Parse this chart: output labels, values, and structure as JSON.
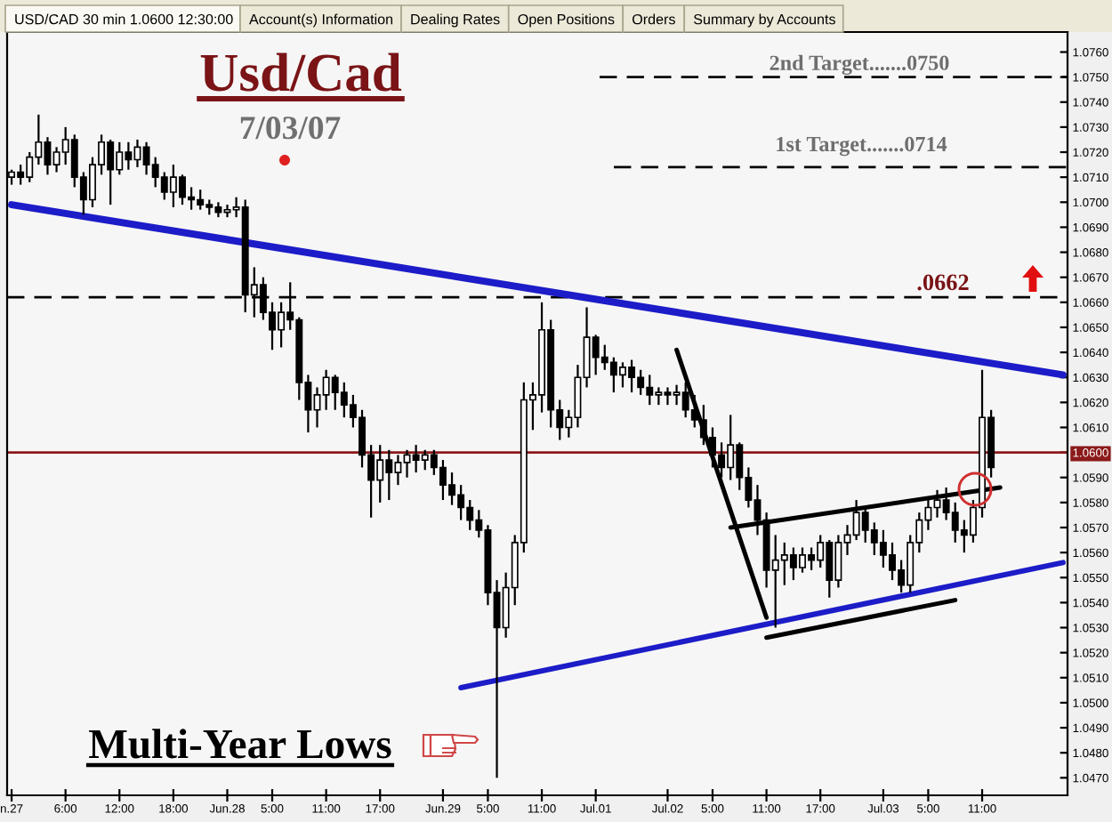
{
  "chart_data": {
    "type": "candlestick",
    "title": "Usd/Cad",
    "subtitle": "7/03/07",
    "color": "#000000",
    "categories": [
      "n.27",
      null,
      null,
      null,
      null,
      null,
      "6:00",
      null,
      null,
      null,
      null,
      null,
      "12:00",
      null,
      null,
      null,
      null,
      null,
      "18:00",
      null,
      null,
      null,
      null,
      null,
      "Jun.28",
      null,
      null,
      null,
      null,
      "5:00",
      null,
      null,
      null,
      null,
      null,
      "11:00",
      null,
      null,
      null,
      null,
      null,
      "17:00",
      null,
      null,
      null,
      null,
      null,
      null,
      "Jun.29",
      null,
      null,
      null,
      null,
      "5:00",
      null,
      null,
      null,
      null,
      null,
      "11:00",
      null,
      null,
      null,
      null,
      null,
      "Jul.01",
      null,
      null,
      null,
      null,
      null,
      null,
      null,
      "Jul.02",
      null,
      null,
      null,
      null,
      "5:00",
      null,
      null,
      null,
      null,
      null,
      "11:00",
      null,
      null,
      null,
      null,
      null,
      "17:00",
      null,
      null,
      null,
      null,
      null,
      null,
      "Jul.03",
      null,
      null,
      null,
      null,
      "5:00",
      null,
      null,
      null,
      null,
      null,
      "11:00",
      null,
      null,
      null,
      null,
      null,
      null,
      null,
      null,
      null
    ],
    "ohlc": [
      [
        1.071,
        1.0713,
        1.0707,
        1.0712
      ],
      [
        1.0712,
        1.0715,
        1.0707,
        1.071
      ],
      [
        1.071,
        1.072,
        1.0708,
        1.0718
      ],
      [
        1.0718,
        1.0735,
        1.0715,
        1.0724
      ],
      [
        1.0724,
        1.0726,
        1.0711,
        1.0715
      ],
      [
        1.0715,
        1.0722,
        1.0712,
        1.072
      ],
      [
        1.072,
        1.073,
        1.0715,
        1.0725
      ],
      [
        1.0725,
        1.0727,
        1.0706,
        1.071
      ],
      [
        1.071,
        1.0712,
        1.0695,
        1.0701
      ],
      [
        1.0701,
        1.0718,
        1.0698,
        1.0715
      ],
      [
        1.0715,
        1.0727,
        1.0711,
        1.0724
      ],
      [
        1.0724,
        1.0725,
        1.0699,
        1.0713
      ],
      [
        1.0713,
        1.0724,
        1.0711,
        1.072
      ],
      [
        1.072,
        1.0724,
        1.0713,
        1.0717
      ],
      [
        1.0717,
        1.0725,
        1.0714,
        1.0722
      ],
      [
        1.0722,
        1.0724,
        1.0711,
        1.0715
      ],
      [
        1.0715,
        1.0718,
        1.0706,
        1.071
      ],
      [
        1.071,
        1.0712,
        1.0701,
        1.0704
      ],
      [
        1.0704,
        1.0715,
        1.0698,
        1.071
      ],
      [
        1.071,
        1.0711,
        1.0699,
        1.0702
      ],
      [
        1.0702,
        1.0706,
        1.0697,
        1.0701
      ],
      [
        1.0701,
        1.0705,
        1.0697,
        1.0699
      ],
      [
        1.0699,
        1.0701,
        1.0695,
        1.0698
      ],
      [
        1.0698,
        1.07,
        1.0694,
        1.0696
      ],
      [
        1.0696,
        1.0699,
        1.0694,
        1.0697
      ],
      [
        1.0697,
        1.0702,
        1.0694,
        1.0698
      ],
      [
        1.0698,
        1.0701,
        1.0656,
        1.0663
      ],
      [
        1.0663,
        1.0674,
        1.0654,
        1.0667
      ],
      [
        1.0667,
        1.067,
        1.0653,
        1.0656
      ],
      [
        1.0656,
        1.066,
        1.0641,
        1.0649
      ],
      [
        1.0649,
        1.066,
        1.0642,
        1.0656
      ],
      [
        1.0656,
        1.0668,
        1.0649,
        1.0653
      ],
      [
        1.0653,
        1.0654,
        1.0621,
        1.0628
      ],
      [
        1.0628,
        1.0631,
        1.0608,
        1.0617
      ],
      [
        1.0617,
        1.0626,
        1.061,
        1.0623
      ],
      [
        1.0623,
        1.0633,
        1.0617,
        1.063
      ],
      [
        1.063,
        1.0631,
        1.0617,
        1.0624
      ],
      [
        1.0624,
        1.0628,
        1.0614,
        1.0619
      ],
      [
        1.0619,
        1.0623,
        1.061,
        1.0614
      ],
      [
        1.0614,
        1.0617,
        1.0594,
        1.0599
      ],
      [
        1.0599,
        1.0603,
        1.0574,
        1.0589
      ],
      [
        1.0589,
        1.0603,
        1.058,
        1.0597
      ],
      [
        1.0597,
        1.0601,
        1.0581,
        1.0592
      ],
      [
        1.0592,
        1.0599,
        1.0587,
        1.0596
      ],
      [
        1.0596,
        1.0601,
        1.059,
        1.0599
      ],
      [
        1.0599,
        1.0603,
        1.0592,
        1.0597
      ],
      [
        1.0597,
        1.0601,
        1.0593,
        1.0599
      ],
      [
        1.0599,
        1.0601,
        1.0591,
        1.0594
      ],
      [
        1.0594,
        1.0597,
        1.0581,
        1.0587
      ],
      [
        1.0587,
        1.0592,
        1.0579,
        1.0583
      ],
      [
        1.0583,
        1.0587,
        1.0573,
        1.0578
      ],
      [
        1.0578,
        1.0581,
        1.0569,
        1.0573
      ],
      [
        1.0573,
        1.0577,
        1.0566,
        1.0569
      ],
      [
        1.0569,
        1.0571,
        1.0539,
        1.0544
      ],
      [
        1.0544,
        1.0549,
        1.047,
        1.053
      ],
      [
        1.053,
        1.0552,
        1.0526,
        1.0546
      ],
      [
        1.0546,
        1.0567,
        1.0539,
        1.0564
      ],
      [
        1.0564,
        1.0628,
        1.056,
        1.0621
      ],
      [
        1.0621,
        1.0628,
        1.0609,
        1.0623
      ],
      [
        1.0623,
        1.066,
        1.0616,
        1.0649
      ],
      [
        1.0649,
        1.0653,
        1.061,
        1.0617
      ],
      [
        1.0617,
        1.0621,
        1.0605,
        1.061
      ],
      [
        1.061,
        1.0617,
        1.0606,
        1.0614
      ],
      [
        1.0614,
        1.0635,
        1.061,
        1.063
      ],
      [
        1.063,
        1.0658,
        1.0626,
        1.0646
      ],
      [
        1.0646,
        1.0647,
        1.0631,
        1.0638
      ],
      [
        1.0638,
        1.0643,
        1.0633,
        1.0636
      ],
      [
        1.0636,
        1.0638,
        1.0624,
        1.0631
      ],
      [
        1.0631,
        1.0636,
        1.0626,
        1.0634
      ],
      [
        1.0634,
        1.0637,
        1.0624,
        1.063
      ],
      [
        1.063,
        1.0633,
        1.0623,
        1.0626
      ],
      [
        1.0626,
        1.0631,
        1.0619,
        1.0623
      ],
      [
        1.0623,
        1.0626,
        1.0619,
        1.0624
      ],
      [
        1.0624,
        1.0626,
        1.0619,
        1.0623
      ],
      [
        1.0623,
        1.0627,
        1.0619,
        1.0624
      ],
      [
        1.0624,
        1.0628,
        1.0614,
        1.0617
      ],
      [
        1.0617,
        1.0623,
        1.061,
        1.0613
      ],
      [
        1.0613,
        1.0619,
        1.0603,
        1.0606
      ],
      [
        1.0606,
        1.061,
        1.0594,
        1.0599
      ],
      [
        1.0599,
        1.0604,
        1.059,
        1.0594
      ],
      [
        1.0594,
        1.0615,
        1.0589,
        1.0603
      ],
      [
        1.0603,
        1.0604,
        1.0585,
        1.059
      ],
      [
        1.059,
        1.0594,
        1.0578,
        1.0581
      ],
      [
        1.0581,
        1.0587,
        1.0567,
        1.0573
      ],
      [
        1.0573,
        1.0576,
        1.0546,
        1.0553
      ],
      [
        1.0553,
        1.0567,
        1.053,
        1.0557
      ],
      [
        1.0557,
        1.0564,
        1.0547,
        1.0559
      ],
      [
        1.0559,
        1.0562,
        1.0549,
        1.0554
      ],
      [
        1.0554,
        1.0562,
        1.0552,
        1.0559
      ],
      [
        1.0559,
        1.0562,
        1.0553,
        1.0557
      ],
      [
        1.0557,
        1.0567,
        1.0554,
        1.0564
      ],
      [
        1.0564,
        1.0565,
        1.0542,
        1.0549
      ],
      [
        1.0549,
        1.0567,
        1.0546,
        1.0564
      ],
      [
        1.0564,
        1.0571,
        1.0559,
        1.0567
      ],
      [
        1.0567,
        1.0581,
        1.0565,
        1.0576
      ],
      [
        1.0576,
        1.0578,
        1.0564,
        1.0569
      ],
      [
        1.0569,
        1.0572,
        1.0559,
        1.0564
      ],
      [
        1.0564,
        1.0569,
        1.0554,
        1.0559
      ],
      [
        1.0559,
        1.0564,
        1.0549,
        1.0553
      ],
      [
        1.0553,
        1.0557,
        1.0544,
        1.0547
      ],
      [
        1.0547,
        1.0567,
        1.0544,
        1.0564
      ],
      [
        1.0564,
        1.0576,
        1.056,
        1.0573
      ],
      [
        1.0573,
        1.0581,
        1.0569,
        1.0578
      ],
      [
        1.0578,
        1.0585,
        1.0574,
        1.0581
      ],
      [
        1.0581,
        1.0586,
        1.0573,
        1.0576
      ],
      [
        1.0576,
        1.058,
        1.0564,
        1.0569
      ],
      [
        1.0569,
        1.0573,
        1.056,
        1.0567
      ],
      [
        1.0567,
        1.0581,
        1.0564,
        1.0578
      ],
      [
        1.0578,
        1.0633,
        1.0574,
        1.0614
      ],
      [
        1.0614,
        1.0617,
        1.059,
        1.0594
      ],
      null,
      null,
      null,
      null,
      null,
      null,
      null,
      null
    ],
    "series": [
      {
        "type": "line",
        "color": "#1c1cc8",
        "values": [
          1.0699,
          null,
          null,
          null,
          null,
          null,
          null,
          null,
          null,
          null,
          null,
          null,
          null,
          null,
          null,
          null,
          null,
          null,
          null,
          null,
          null,
          null,
          null,
          null,
          null,
          null,
          null,
          null,
          null,
          null,
          null,
          null,
          null,
          null,
          null,
          null,
          null,
          null,
          null,
          null,
          null,
          null,
          null,
          null,
          null,
          null,
          null,
          null,
          null,
          null,
          null,
          null,
          null,
          null,
          null,
          null,
          null,
          null,
          null,
          null,
          null,
          null,
          null,
          null,
          null,
          null,
          null,
          null,
          null,
          null,
          null,
          null,
          null,
          null,
          null,
          null,
          null,
          null,
          null,
          null,
          null,
          null,
          null,
          null,
          null,
          null,
          null,
          null,
          null,
          null,
          null,
          null,
          null,
          null,
          null,
          null,
          null,
          null,
          null,
          null,
          null,
          null,
          null,
          null,
          null,
          null,
          null,
          null,
          null,
          null,
          null,
          null,
          null,
          null,
          null,
          null,
          null,
          1.0631
        ]
      },
      {
        "type": "line",
        "color": "#1c1cc8",
        "values": [
          null,
          null,
          null,
          null,
          null,
          null,
          null,
          null,
          null,
          null,
          null,
          null,
          null,
          null,
          null,
          null,
          null,
          null,
          null,
          null,
          null,
          null,
          null,
          null,
          null,
          null,
          null,
          null,
          null,
          null,
          null,
          null,
          null,
          null,
          null,
          null,
          null,
          null,
          null,
          null,
          null,
          null,
          null,
          null,
          null,
          null,
          null,
          null,
          null,
          null,
          1.0506,
          null,
          null,
          null,
          null,
          null,
          null,
          null,
          null,
          null,
          null,
          null,
          null,
          null,
          null,
          null,
          null,
          null,
          null,
          null,
          null,
          null,
          null,
          null,
          null,
          null,
          null,
          null,
          null,
          null,
          null,
          null,
          null,
          null,
          null,
          null,
          null,
          null,
          null,
          null,
          null,
          null,
          null,
          null,
          null,
          null,
          null,
          null,
          null,
          null,
          null,
          null,
          null,
          null,
          null,
          null,
          null,
          null,
          null,
          null,
          null,
          null,
          null,
          null,
          null,
          null,
          null,
          1.0556
        ]
      },
      {
        "type": "line",
        "color": "#000000",
        "values": [
          null,
          null,
          null,
          null,
          null,
          null,
          null,
          null,
          null,
          null,
          null,
          null,
          null,
          null,
          null,
          null,
          null,
          null,
          null,
          null,
          null,
          null,
          null,
          null,
          null,
          null,
          null,
          null,
          null,
          null,
          null,
          null,
          null,
          null,
          null,
          null,
          null,
          null,
          null,
          null,
          null,
          null,
          null,
          null,
          null,
          null,
          null,
          null,
          null,
          null,
          null,
          null,
          null,
          null,
          null,
          null,
          null,
          null,
          null,
          null,
          null,
          null,
          null,
          null,
          null,
          null,
          null,
          null,
          null,
          null,
          null,
          null,
          null,
          null,
          1.0641,
          null,
          null,
          null,
          null,
          null,
          null,
          null,
          null,
          null,
          1.0534,
          null,
          null,
          null,
          null,
          null,
          null,
          null,
          null,
          null,
          null,
          null,
          null,
          null,
          null,
          null,
          null,
          null,
          null,
          null,
          null,
          null,
          null,
          null,
          null,
          null,
          null,
          null,
          null,
          null,
          null,
          null,
          null,
          null
        ]
      },
      {
        "type": "line",
        "color": "#000000",
        "values": [
          null,
          null,
          null,
          null,
          null,
          null,
          null,
          null,
          null,
          null,
          null,
          null,
          null,
          null,
          null,
          null,
          null,
          null,
          null,
          null,
          null,
          null,
          null,
          null,
          null,
          null,
          null,
          null,
          null,
          null,
          null,
          null,
          null,
          null,
          null,
          null,
          null,
          null,
          null,
          null,
          null,
          null,
          null,
          null,
          null,
          null,
          null,
          null,
          null,
          null,
          null,
          null,
          null,
          null,
          null,
          null,
          null,
          null,
          null,
          null,
          null,
          null,
          null,
          null,
          null,
          null,
          null,
          null,
          null,
          null,
          null,
          null,
          null,
          null,
          null,
          null,
          null,
          null,
          null,
          null,
          1.057,
          null,
          null,
          null,
          null,
          null,
          null,
          null,
          null,
          null,
          null,
          null,
          null,
          null,
          null,
          null,
          null,
          null,
          null,
          null,
          null,
          null,
          null,
          null,
          null,
          null,
          null,
          null,
          null,
          null,
          1.0586,
          null,
          null,
          null,
          null,
          null,
          null,
          null
        ]
      },
      {
        "type": "line",
        "color": "#000000",
        "values": [
          null,
          null,
          null,
          null,
          null,
          null,
          null,
          null,
          null,
          null,
          null,
          null,
          null,
          null,
          null,
          null,
          null,
          null,
          null,
          null,
          null,
          null,
          null,
          null,
          null,
          null,
          null,
          null,
          null,
          null,
          null,
          null,
          null,
          null,
          null,
          null,
          null,
          null,
          null,
          null,
          null,
          null,
          null,
          null,
          null,
          null,
          null,
          null,
          null,
          null,
          null,
          null,
          null,
          null,
          null,
          null,
          null,
          null,
          null,
          null,
          null,
          null,
          null,
          null,
          null,
          null,
          null,
          null,
          null,
          null,
          null,
          null,
          null,
          null,
          null,
          null,
          null,
          null,
          null,
          null,
          null,
          null,
          null,
          null,
          1.0526,
          null,
          null,
          null,
          null,
          null,
          null,
          null,
          null,
          null,
          null,
          null,
          null,
          null,
          null,
          null,
          null,
          null,
          null,
          null,
          null,
          1.0541,
          null,
          null,
          null,
          null,
          null,
          null,
          null,
          null,
          null,
          null,
          null,
          null
        ]
      }
    ],
    "ylim": [
      1.0463,
      1.0768
    ],
    "yticks": [
      {
        "value": 1.047,
        "label": "1.0470"
      },
      {
        "value": 1.048,
        "label": "1.0480"
      },
      {
        "value": 1.049,
        "label": "1.0490"
      },
      {
        "value": 1.05,
        "label": "1.0500"
      },
      {
        "value": 1.051,
        "label": "1.0510"
      },
      {
        "value": 1.052,
        "label": "1.0520"
      },
      {
        "value": 1.053,
        "label": "1.0530"
      },
      {
        "value": 1.054,
        "label": "1.0540"
      },
      {
        "value": 1.055,
        "label": "1.0550"
      },
      {
        "value": 1.056,
        "label": "1.0560"
      },
      {
        "value": 1.057,
        "label": "1.0570"
      },
      {
        "value": 1.058,
        "label": "1.0580"
      },
      {
        "value": 1.059,
        "label": "1.0590"
      },
      {
        "value": 1.06,
        "label": "1.0600"
      },
      {
        "value": 1.061,
        "label": "1.0610"
      },
      {
        "value": 1.062,
        "label": "1.0620"
      },
      {
        "value": 1.063,
        "label": "1.0630"
      },
      {
        "value": 1.064,
        "label": "1.0640"
      },
      {
        "value": 1.065,
        "label": "1.0650"
      },
      {
        "value": 1.066,
        "label": "1.0660"
      },
      {
        "value": 1.067,
        "label": "1.0670"
      },
      {
        "value": 1.068,
        "label": "1.0680"
      },
      {
        "value": 1.069,
        "label": "1.0690"
      },
      {
        "value": 1.07,
        "label": "1.0700"
      },
      {
        "value": 1.071,
        "label": "1.0710"
      },
      {
        "value": 1.072,
        "label": "1.0720"
      },
      {
        "value": 1.073,
        "label": "1.0730"
      },
      {
        "value": 1.074,
        "label": "1.0740"
      },
      {
        "value": 1.075,
        "label": "1.0750"
      },
      {
        "value": 1.076,
        "label": "1.0760"
      }
    ],
    "ref_lines": [
      {
        "axis": "y",
        "value": 1.075,
        "label": "2nd Target.......0750",
        "color": "#000000",
        "line_style": "dashed"
      },
      {
        "axis": "y",
        "value": 1.0714,
        "label": "1st Target.......0714",
        "color": "#000000",
        "line_style": "dashed"
      },
      {
        "axis": "y",
        "value": 1.0662,
        "color": "#000000",
        "line_style": "dashed"
      },
      {
        "axis": "y",
        "value": 1.06,
        "color": "#8b1a1a",
        "line_style": "solid"
      }
    ],
    "annotations": [
      "USD/CAD 30 min 1.0600 12:30:00",
      "Account(s) Information",
      "Dealing Rates",
      "Open Positions",
      "Orders",
      "Summary by Accounts",
      "Multi-Year Lows",
      ".0662"
    ]
  }
}
